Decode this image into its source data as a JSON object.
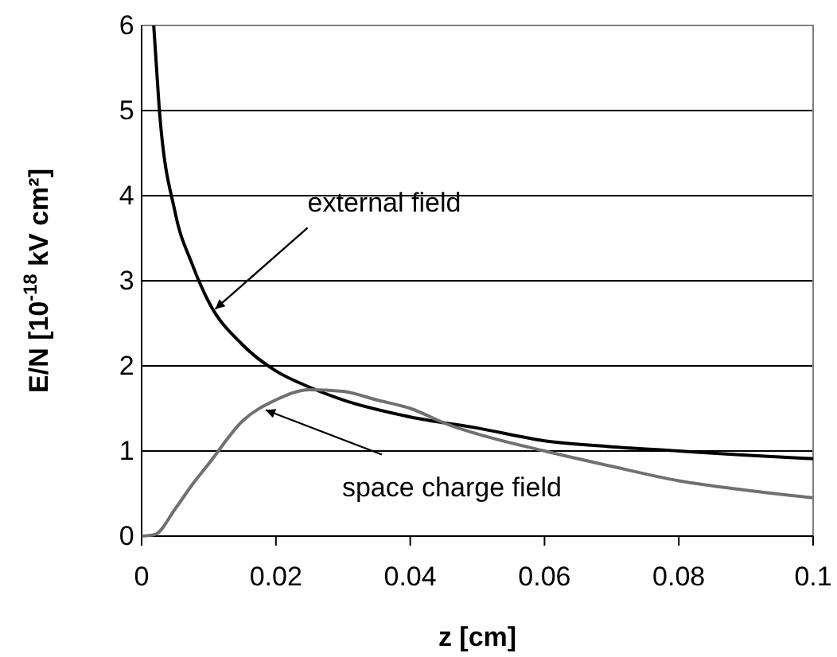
{
  "chart_data": {
    "type": "line",
    "xlabel": "z [cm]",
    "ylabel": "E/N [10$^{-18}$ kV cm²]",
    "xlim": [
      0,
      0.1
    ],
    "xticks": [
      0,
      0.02,
      0.04,
      0.06,
      0.08,
      0.1
    ],
    "ylim": [
      0,
      6
    ],
    "yticks": [
      0,
      1,
      2,
      3,
      4,
      5,
      6
    ],
    "grid": "y",
    "marker": "none",
    "line_style": "solid",
    "series": [
      {
        "color": "#000000",
        "x": [
          0.0018,
          0.0026,
          0.005,
          0.0075,
          0.01,
          0.015,
          0.02,
          0.025,
          0.03,
          0.04,
          0.05,
          0.06,
          0.07,
          0.08,
          0.09,
          0.1
        ],
        "values": [
          6,
          5.05,
          3.8,
          3.2,
          2.75,
          2.25,
          1.94,
          1.75,
          1.6,
          1.4,
          1.27,
          1.12,
          1.05,
          1.0,
          0.95,
          0.91
        ]
      },
      {
        "color": "#707070",
        "x": [
          0,
          0.002,
          0.005,
          0.0075,
          0.01,
          0.015,
          0.02,
          0.025,
          0.03,
          0.035,
          0.04,
          0.046,
          0.05,
          0.06,
          0.07,
          0.08,
          0.09,
          0.1
        ],
        "values": [
          0,
          0.02,
          0.32,
          0.6,
          0.85,
          1.35,
          1.6,
          1.72,
          1.7,
          1.6,
          1.5,
          1.3,
          1.2,
          1.0,
          0.82,
          0.65,
          0.54,
          0.45
        ]
      }
    ],
    "annotations": [
      {
        "text": "external field",
        "x": 0.0105,
        "y": 2.65
      },
      {
        "text": "space charge field",
        "x": 0.018,
        "y": 1.5
      }
    ]
  }
}
